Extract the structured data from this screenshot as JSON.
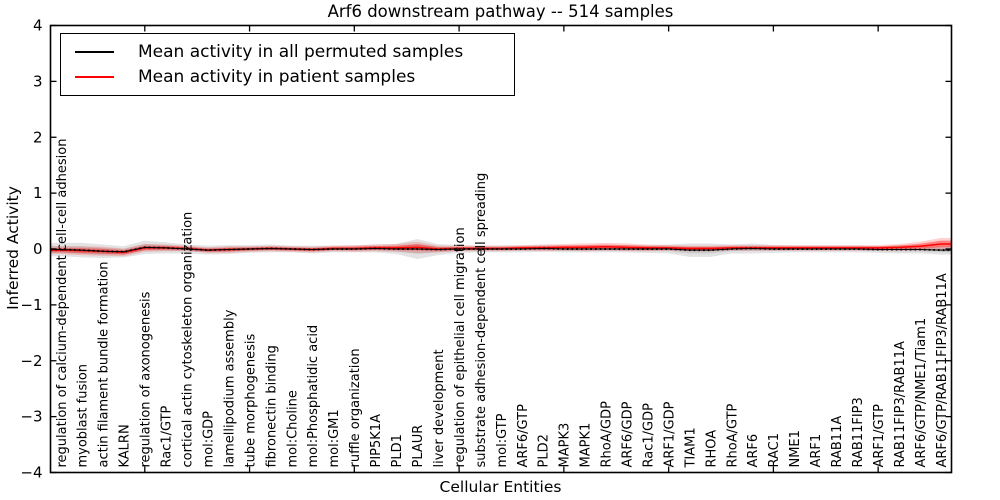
{
  "title": "Arf6 downstream pathway -- 514 samples",
  "axes": {
    "xlabel": "Cellular Entities",
    "ylabel": "Inferred Activity",
    "yticks": [
      4,
      3,
      2,
      1,
      0,
      -1,
      -2,
      -3,
      -4
    ]
  },
  "legend": {
    "items": [
      {
        "label": "Mean activity in all permuted samples",
        "color": "#000000"
      },
      {
        "label": "Mean activity in patient samples",
        "color": "#ff0000"
      }
    ]
  },
  "chart_data": {
    "type": "line",
    "title": "Arf6 downstream pathway -- 514 samples",
    "xlabel": "Cellular Entities",
    "ylabel": "Inferred Activity",
    "ylim": [
      -4,
      4
    ],
    "grid": false,
    "legend_position": "upper left",
    "x_major_tick_every": 5,
    "categories": [
      "regulation of calcium-dependent cell-cell adhesion",
      "myoblast fusion",
      "actin filament bundle formation",
      "KALRN",
      "regulation of axonogenesis",
      "Rac1/GTP",
      "cortical actin cytoskeleton organization",
      "mol:GDP",
      "lamellipodium assembly",
      "tube morphogenesis",
      "fibronectin binding",
      "mol:Choline",
      "mol:Phosphatidic acid",
      "mol:GM1",
      "ruffle organization",
      "PIP5K1A",
      "PLD1",
      "PLAUR",
      "liver development",
      "regulation of epithelial cell migration",
      "substrate adhesion-dependent cell spreading",
      "mol:GTP",
      "ARF6/GTP",
      "PLD2",
      "MAPK3",
      "MAPK1",
      "RhoA/GDP",
      "ARF6/GDP",
      "Rac1/GDP",
      "ARF1/GDP",
      "TIAM1",
      "RHOA",
      "RhoA/GTP",
      "ARF6",
      "RAC1",
      "NME1",
      "ARF1",
      "RAB11A",
      "RAB11FIP3",
      "ARF1/GTP",
      "RAB11FIP3/RAB11A",
      "ARF6/GTP/NME1/Tiam1",
      "ARF6/GTP/RAB11FIP3/RAB11A"
    ],
    "series": [
      {
        "name": "Mean activity in all permuted samples",
        "color": "#000000",
        "band_color": "#9a9a9a",
        "values": [
          -0.01,
          -0.02,
          -0.04,
          -0.05,
          0.03,
          0.02,
          0.0,
          -0.02,
          -0.01,
          0.0,
          0.01,
          0.0,
          -0.01,
          0.0,
          0.0,
          0.01,
          0.0,
          0.0,
          -0.01,
          0.0,
          0.0,
          0.0,
          0.0,
          0.01,
          0.0,
          0.0,
          0.0,
          0.0,
          0.0,
          0.0,
          -0.02,
          -0.02,
          0.0,
          0.01,
          0.0,
          0.0,
          0.0,
          0.0,
          0.0,
          -0.01,
          -0.01,
          -0.01,
          -0.02
        ],
        "band_halfwidth": [
          0.12,
          0.13,
          0.12,
          0.1,
          0.12,
          0.1,
          0.08,
          0.08,
          0.08,
          0.07,
          0.07,
          0.06,
          0.07,
          0.06,
          0.06,
          0.07,
          0.09,
          0.18,
          0.1,
          0.07,
          0.06,
          0.06,
          0.06,
          0.06,
          0.06,
          0.06,
          0.06,
          0.06,
          0.07,
          0.08,
          0.12,
          0.12,
          0.08,
          0.09,
          0.07,
          0.06,
          0.06,
          0.06,
          0.06,
          0.06,
          0.07,
          0.07,
          0.08
        ]
      },
      {
        "name": "Mean activity in patient samples",
        "color": "#ff0000",
        "band_color": "#ff0000",
        "values": [
          -0.02,
          -0.03,
          -0.04,
          -0.06,
          0.02,
          0.02,
          0.01,
          -0.02,
          -0.01,
          0.0,
          0.01,
          0.0,
          -0.01,
          0.01,
          0.01,
          0.02,
          0.02,
          0.03,
          0.0,
          0.01,
          0.01,
          0.01,
          0.02,
          0.02,
          0.03,
          0.03,
          0.04,
          0.03,
          0.02,
          0.02,
          0.01,
          0.01,
          0.02,
          0.02,
          0.02,
          0.02,
          0.02,
          0.02,
          0.02,
          0.02,
          0.03,
          0.05,
          0.09
        ],
        "band_halfwidth": [
          0.07,
          0.08,
          0.08,
          0.07,
          0.07,
          0.06,
          0.05,
          0.05,
          0.06,
          0.05,
          0.05,
          0.05,
          0.05,
          0.05,
          0.06,
          0.06,
          0.07,
          0.1,
          0.06,
          0.05,
          0.05,
          0.05,
          0.05,
          0.06,
          0.06,
          0.07,
          0.07,
          0.07,
          0.06,
          0.05,
          0.05,
          0.05,
          0.05,
          0.05,
          0.05,
          0.05,
          0.05,
          0.05,
          0.05,
          0.05,
          0.06,
          0.08,
          0.11
        ]
      }
    ]
  }
}
